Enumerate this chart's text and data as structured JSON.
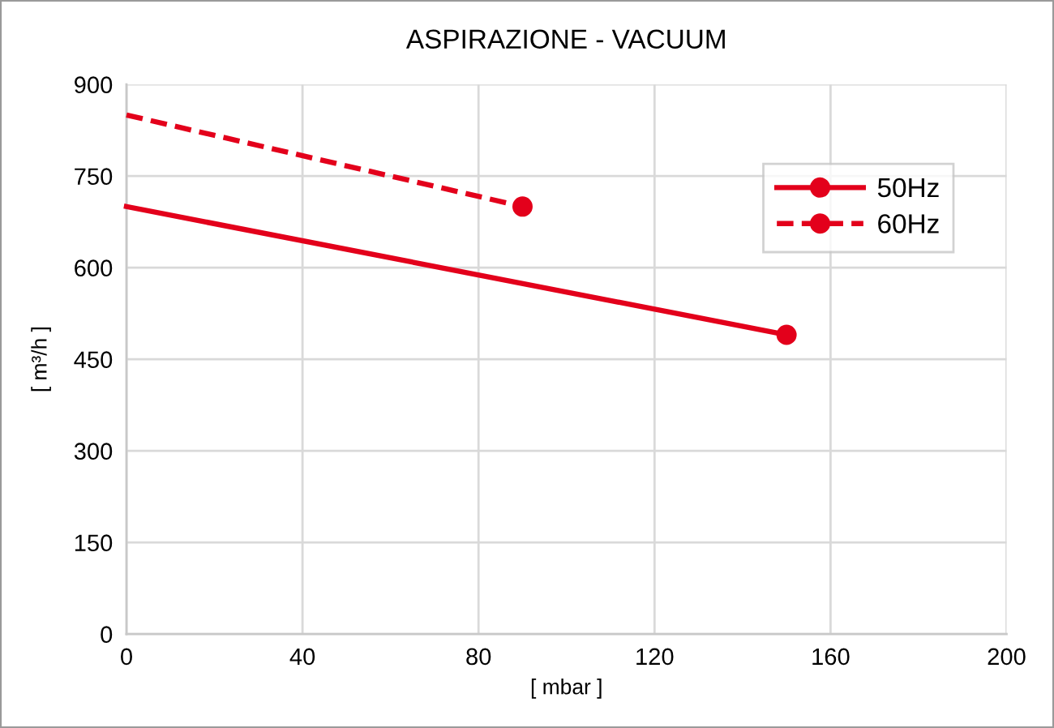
{
  "chart_data": {
    "type": "line",
    "title": "ASPIRAZIONE - VACUUM",
    "xlabel": "[ mbar ]",
    "ylabel": "[ m³/h ]",
    "series": [
      {
        "name": "50Hz",
        "color": "#e3001b",
        "x": [
          0,
          150
        ],
        "values": [
          700,
          490
        ],
        "line_style": "solid"
      },
      {
        "name": "60Hz",
        "color": "#e3001b",
        "x": [
          0,
          90
        ],
        "values": [
          850,
          700
        ],
        "line_style": "dashed"
      }
    ],
    "xlim": [
      0,
      200
    ],
    "xticks": [
      0,
      40,
      80,
      120,
      160,
      200
    ],
    "ylim": [
      0,
      900
    ],
    "yticks": [
      0,
      150,
      300,
      450,
      600,
      750,
      900
    ],
    "grid": true,
    "legend": "top right",
    "marker": "circle"
  }
}
